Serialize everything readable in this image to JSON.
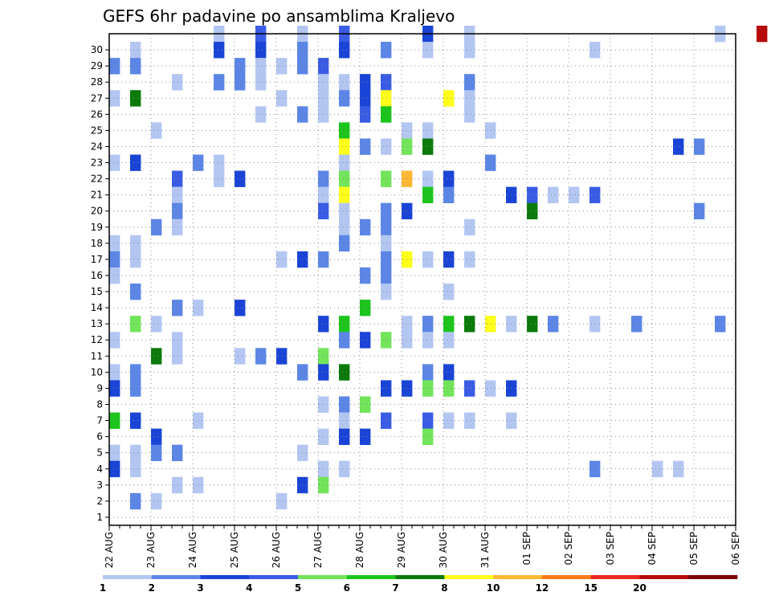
{
  "chart_data": {
    "type": "heatmap",
    "title": "GEFS 6hr padavine po ansamblima Kraljevo",
    "x_labels": [
      "22 AUG",
      "23 AUG",
      "24 AUG",
      "25 AUG",
      "26 AUG",
      "27 AUG",
      "28 AUG",
      "29 AUG",
      "30 AUG",
      "31 AUG",
      "01 SEP",
      "02 SEP",
      "03 SEP",
      "04 SEP",
      "05 SEP",
      "06 SEP"
    ],
    "x_step": "6hr",
    "y_labels": [
      "1",
      "2",
      "3",
      "4",
      "5",
      "6",
      "7",
      "8",
      "9",
      "10",
      "11",
      "12",
      "13",
      "14",
      "15",
      "16",
      "17",
      "18",
      "19",
      "20",
      "21",
      "22",
      "23",
      "24",
      "25",
      "26",
      "27",
      "28",
      "29",
      "30"
    ],
    "legend": {
      "labels": [
        "1",
        "2",
        "3",
        "4",
        "5",
        "6",
        "7",
        "8",
        "10",
        "12",
        "15",
        "20"
      ],
      "colors": [
        "#b3c6f2",
        "#5c86e6",
        "#1a44d6",
        "#3a5ce4",
        "#72e45a",
        "#1cc41c",
        "#0b7a0b",
        "#ffff1a",
        "#ffb833",
        "#ff7a1a",
        "#e8281a",
        "#b50a0a",
        "#7a0000"
      ]
    },
    "grid": true,
    "cells": [
      [
        30,
        2.5,
        1
      ],
      [
        30,
        3.5,
        4
      ],
      [
        30,
        4.5,
        1
      ],
      [
        30,
        5.5,
        4
      ],
      [
        30,
        7.5,
        3
      ],
      [
        30,
        8.5,
        1
      ],
      [
        30,
        14.5,
        1
      ],
      [
        30,
        15.5,
        12
      ],
      [
        30,
        16.5,
        1
      ],
      [
        30,
        17.5,
        4
      ],
      [
        30,
        18.5,
        2
      ],
      [
        30,
        23.5,
        3
      ],
      [
        30,
        24.5,
        1
      ],
      [
        30,
        25.5,
        1
      ],
      [
        30,
        27.5,
        1
      ],
      [
        29,
        0.5,
        1
      ],
      [
        29,
        2.5,
        3
      ],
      [
        29,
        3.5,
        3
      ],
      [
        29,
        4.5,
        2
      ],
      [
        29,
        5.5,
        3
      ],
      [
        29,
        6.5,
        2
      ],
      [
        29,
        7.5,
        1
      ],
      [
        29,
        8.5,
        1
      ],
      [
        29,
        11.5,
        1
      ],
      [
        29,
        20.5,
        11
      ],
      [
        29,
        22.5,
        2
      ],
      [
        28,
        0,
        2
      ],
      [
        28,
        0.5,
        2
      ],
      [
        28,
        3,
        2
      ],
      [
        28,
        3.5,
        1
      ],
      [
        28,
        4,
        1
      ],
      [
        28,
        4.5,
        2
      ],
      [
        28,
        5,
        4
      ],
      [
        28,
        18.5,
        2
      ],
      [
        28,
        19,
        8
      ],
      [
        28,
        29.5,
        3
      ],
      [
        28,
        29.75,
        2
      ],
      [
        27,
        1.5,
        1
      ],
      [
        27,
        2.5,
        2
      ],
      [
        27,
        3,
        2
      ],
      [
        27,
        3.5,
        1
      ],
      [
        27,
        5,
        1
      ],
      [
        27,
        5.5,
        1
      ],
      [
        27,
        6,
        3
      ],
      [
        27,
        6.5,
        4
      ],
      [
        27,
        8.5,
        2
      ],
      [
        26,
        0,
        1
      ],
      [
        26,
        0.5,
        7
      ],
      [
        26,
        4,
        1
      ],
      [
        26,
        5,
        1
      ],
      [
        26,
        5.5,
        2
      ],
      [
        26,
        6,
        3
      ],
      [
        26,
        6.5,
        8
      ],
      [
        26,
        8,
        8
      ],
      [
        26,
        8.5,
        1
      ],
      [
        26,
        22,
        1
      ],
      [
        26,
        25,
        4
      ],
      [
        26,
        25.5,
        1
      ],
      [
        26,
        26,
        1
      ],
      [
        25,
        3.5,
        1
      ],
      [
        25,
        4.5,
        2
      ],
      [
        25,
        5,
        1
      ],
      [
        25,
        6,
        4
      ],
      [
        25,
        6.5,
        6
      ],
      [
        25,
        8.5,
        1
      ],
      [
        25,
        23,
        1
      ],
      [
        24,
        1,
        1
      ],
      [
        24,
        5.5,
        6
      ],
      [
        24,
        7,
        1
      ],
      [
        24,
        7.5,
        1
      ],
      [
        24,
        9,
        1
      ],
      [
        23,
        5.5,
        8
      ],
      [
        23,
        6,
        2
      ],
      [
        23,
        6.5,
        1
      ],
      [
        23,
        7,
        5
      ],
      [
        23,
        7.5,
        7
      ],
      [
        23,
        13.5,
        3
      ],
      [
        23,
        14,
        2
      ],
      [
        23,
        17.5,
        2
      ],
      [
        23,
        18,
        11
      ],
      [
        23,
        22,
        3
      ],
      [
        23,
        22.5,
        2
      ],
      [
        23,
        29.75,
        1
      ],
      [
        22,
        0,
        1
      ],
      [
        22,
        0.5,
        3
      ],
      [
        22,
        2,
        2
      ],
      [
        22,
        2.5,
        1
      ],
      [
        22,
        5.5,
        1
      ],
      [
        22,
        9,
        2
      ],
      [
        22,
        16,
        1
      ],
      [
        22,
        17.5,
        2
      ],
      [
        22,
        18,
        1
      ],
      [
        22,
        18.5,
        2
      ],
      [
        22,
        19,
        5
      ],
      [
        22,
        19.5,
        11
      ],
      [
        22,
        20,
        1
      ],
      [
        22,
        20.5,
        6
      ],
      [
        22,
        24,
        2
      ],
      [
        21,
        1.5,
        4
      ],
      [
        21,
        2.5,
        1
      ],
      [
        21,
        3,
        3
      ],
      [
        21,
        5,
        2
      ],
      [
        21,
        5.5,
        5
      ],
      [
        21,
        6.5,
        5
      ],
      [
        21,
        7,
        9
      ],
      [
        21,
        7.5,
        1
      ],
      [
        21,
        8,
        3
      ],
      [
        21,
        26,
        2
      ],
      [
        21,
        27.5,
        1
      ],
      [
        21,
        28,
        1
      ],
      [
        20,
        1.5,
        1
      ],
      [
        20,
        5,
        1
      ],
      [
        20,
        5.5,
        8
      ],
      [
        20,
        7.5,
        6
      ],
      [
        20,
        8,
        2
      ],
      [
        20,
        9.5,
        3
      ],
      [
        20,
        10,
        4
      ],
      [
        20,
        10.5,
        1
      ],
      [
        20,
        11,
        1
      ],
      [
        20,
        11.5,
        4
      ],
      [
        19,
        1.5,
        2
      ],
      [
        19,
        5,
        4
      ],
      [
        19,
        5.5,
        1
      ],
      [
        19,
        6.5,
        2
      ],
      [
        19,
        7,
        3
      ],
      [
        19,
        10,
        7
      ],
      [
        19,
        14,
        2
      ],
      [
        19,
        28.5,
        1
      ],
      [
        19,
        29,
        4
      ],
      [
        18,
        1,
        2
      ],
      [
        18,
        1.5,
        1
      ],
      [
        18,
        5.5,
        1
      ],
      [
        18,
        6,
        2
      ],
      [
        18,
        6.5,
        2
      ],
      [
        18,
        8.5,
        1
      ],
      [
        18,
        19,
        2
      ],
      [
        18,
        19.5,
        8
      ],
      [
        18,
        22,
        1
      ],
      [
        18,
        27,
        2
      ],
      [
        18,
        27.5,
        1
      ],
      [
        18,
        28,
        2
      ],
      [
        17,
        0,
        1
      ],
      [
        17,
        0.5,
        1
      ],
      [
        17,
        5.5,
        2
      ],
      [
        17,
        6.5,
        1
      ],
      [
        17,
        19,
        1
      ],
      [
        17,
        19.5,
        4
      ],
      [
        17,
        23.5,
        2
      ],
      [
        17,
        24.5,
        1
      ],
      [
        17,
        25,
        1
      ],
      [
        16,
        0,
        2
      ],
      [
        16,
        0.5,
        1
      ],
      [
        16,
        4,
        1
      ],
      [
        16,
        4.5,
        3
      ],
      [
        16,
        5,
        2
      ],
      [
        16,
        6.5,
        2
      ],
      [
        16,
        7,
        8
      ],
      [
        16,
        7.5,
        1
      ],
      [
        16,
        8,
        3
      ],
      [
        16,
        8.5,
        1
      ],
      [
        16,
        23.5,
        6
      ],
      [
        16,
        24,
        2
      ],
      [
        15,
        0,
        1
      ],
      [
        15,
        6,
        2
      ],
      [
        15,
        6.5,
        2
      ],
      [
        15,
        27.5,
        5
      ],
      [
        14,
        0.5,
        2
      ],
      [
        14,
        6.5,
        1
      ],
      [
        14,
        8,
        1
      ],
      [
        14,
        17.5,
        7
      ],
      [
        14,
        18,
        3
      ],
      [
        14,
        19,
        1
      ],
      [
        14,
        21,
        1
      ],
      [
        14,
        21.5,
        9
      ],
      [
        14,
        22,
        1
      ],
      [
        13,
        1.5,
        2
      ],
      [
        13,
        2,
        1
      ],
      [
        13,
        3,
        3
      ],
      [
        13,
        6,
        6
      ],
      [
        12,
        0.5,
        5
      ],
      [
        12,
        1,
        1
      ],
      [
        12,
        5,
        3
      ],
      [
        12,
        5.5,
        6
      ],
      [
        12,
        7,
        1
      ],
      [
        12,
        7.5,
        2
      ],
      [
        12,
        8,
        6
      ],
      [
        12,
        8.5,
        7
      ],
      [
        12,
        9,
        8
      ],
      [
        12,
        9.5,
        1
      ],
      [
        12,
        10,
        7
      ],
      [
        12,
        10.5,
        2
      ],
      [
        12,
        11.5,
        1
      ],
      [
        12,
        12.5,
        2
      ],
      [
        12,
        14.5,
        2
      ],
      [
        12,
        26,
        1
      ],
      [
        12,
        29.5,
        2
      ],
      [
        11,
        0,
        1
      ],
      [
        11,
        1.5,
        1
      ],
      [
        11,
        5.5,
        2
      ],
      [
        11,
        6,
        3
      ],
      [
        11,
        6.5,
        5
      ],
      [
        11,
        7,
        1
      ],
      [
        11,
        7.5,
        1
      ],
      [
        11,
        8,
        1
      ],
      [
        11,
        18.5,
        2
      ],
      [
        11,
        19,
        1
      ],
      [
        11,
        23,
        1
      ],
      [
        11,
        24,
        1
      ],
      [
        11,
        29,
        1
      ],
      [
        11,
        29.5,
        2
      ],
      [
        10,
        1,
        7
      ],
      [
        10,
        1.5,
        1
      ],
      [
        10,
        3,
        1
      ],
      [
        10,
        3.5,
        2
      ],
      [
        10,
        4,
        3
      ],
      [
        10,
        5,
        5
      ],
      [
        10,
        19.5,
        6
      ],
      [
        10,
        20,
        5
      ],
      [
        10,
        20.5,
        1
      ],
      [
        9,
        0,
        1
      ],
      [
        9,
        0.5,
        2
      ],
      [
        9,
        4.5,
        2
      ],
      [
        9,
        5,
        3
      ],
      [
        9,
        5.5,
        7
      ],
      [
        9,
        7.5,
        2
      ],
      [
        9,
        8,
        3
      ],
      [
        9,
        17.5,
        1
      ],
      [
        9,
        19,
        2
      ],
      [
        9,
        19.5,
        5
      ],
      [
        9,
        20,
        1
      ],
      [
        9,
        29.5,
        1
      ],
      [
        8,
        0,
        3
      ],
      [
        8,
        0.5,
        2
      ],
      [
        8,
        6.5,
        3
      ],
      [
        8,
        7,
        3
      ],
      [
        8,
        7.5,
        5
      ],
      [
        8,
        8,
        5
      ],
      [
        8,
        8.5,
        4
      ],
      [
        8,
        9,
        1
      ],
      [
        8,
        9.5,
        3
      ],
      [
        8,
        18.5,
        2
      ],
      [
        8,
        19,
        8
      ],
      [
        7,
        5,
        1
      ],
      [
        7,
        5.5,
        2
      ],
      [
        7,
        6,
        5
      ],
      [
        7,
        17.5,
        3
      ],
      [
        7,
        18,
        2
      ],
      [
        6,
        0,
        6
      ],
      [
        6,
        0.5,
        3
      ],
      [
        6,
        2,
        1
      ],
      [
        6,
        5.5,
        1
      ],
      [
        6,
        6.5,
        4
      ],
      [
        6,
        7.5,
        4
      ],
      [
        6,
        8,
        1
      ],
      [
        6,
        8.5,
        1
      ],
      [
        6,
        9.5,
        1
      ],
      [
        6,
        18.5,
        2
      ],
      [
        6,
        19,
        1
      ],
      [
        6,
        21,
        4
      ],
      [
        6,
        22.5,
        1
      ],
      [
        6,
        23,
        5
      ],
      [
        6,
        23.5,
        6
      ],
      [
        6,
        24,
        1
      ],
      [
        5,
        1,
        3
      ],
      [
        5,
        5,
        1
      ],
      [
        5,
        5.5,
        3
      ],
      [
        5,
        6,
        3
      ],
      [
        5,
        7.5,
        5
      ],
      [
        5,
        19,
        2
      ],
      [
        5,
        19.5,
        5
      ],
      [
        5,
        21,
        2
      ],
      [
        4,
        0,
        1
      ],
      [
        4,
        0.5,
        1
      ],
      [
        4,
        1,
        2
      ],
      [
        4,
        1.5,
        2
      ],
      [
        4,
        4.5,
        1
      ],
      [
        4,
        23.5,
        2
      ],
      [
        3,
        0,
        3
      ],
      [
        3,
        0.5,
        1
      ],
      [
        3,
        5,
        1
      ],
      [
        3,
        5.5,
        1
      ],
      [
        3,
        11.5,
        2
      ],
      [
        3,
        13,
        1
      ],
      [
        3,
        13.5,
        1
      ],
      [
        3,
        17,
        9
      ],
      [
        3,
        17.5,
        1
      ],
      [
        3,
        23.5,
        6
      ],
      [
        2,
        1.5,
        1
      ],
      [
        2,
        2,
        1
      ],
      [
        2,
        4.5,
        3
      ],
      [
        2,
        5,
        5
      ],
      [
        2,
        19,
        2
      ],
      [
        2,
        22.5,
        2
      ],
      [
        1,
        0.5,
        2
      ],
      [
        1,
        1,
        1
      ],
      [
        1,
        4,
        1
      ]
    ]
  }
}
